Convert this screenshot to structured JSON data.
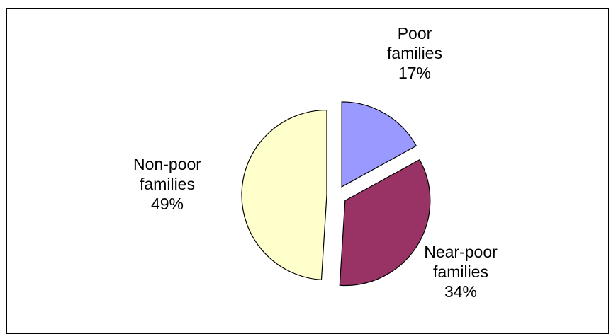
{
  "page_title": "",
  "chart_data": {
    "type": "pie",
    "title": "",
    "slices": [
      {
        "label": [
          "Poor",
          "families"
        ],
        "value": 17,
        "display": "17%",
        "color": "#9999ff",
        "exploded": true
      },
      {
        "label": [
          "Near-poor",
          "families"
        ],
        "value": 34,
        "display": "34%",
        "color": "#993366",
        "exploded": true
      },
      {
        "label": [
          "Non-poor",
          "families"
        ],
        "value": 49,
        "display": "49%",
        "color": "#ffffcc",
        "exploded": true
      }
    ],
    "legend": "none",
    "data_labels": "outside"
  }
}
